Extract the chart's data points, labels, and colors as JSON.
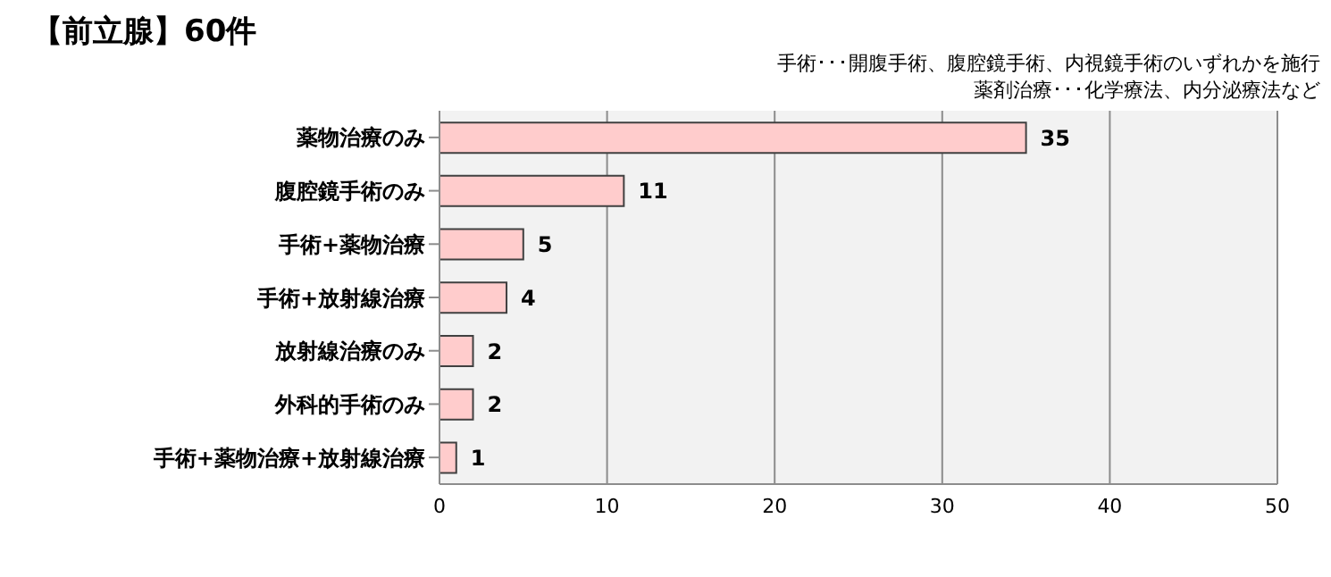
{
  "chart_data": {
    "type": "bar",
    "orientation": "horizontal",
    "title": "【前立腺】60件",
    "annotations": [
      "手術･･･開腹手術、腹腔鏡手術、内視鏡手術のいずれかを施行",
      "薬剤治療･･･化学療法、内分泌療法など"
    ],
    "categories": [
      "薬物治療のみ",
      "腹腔鏡手術のみ",
      "手術+薬物治療",
      "手術+放射線治療",
      "放射線治療のみ",
      "外科的手術のみ",
      "手術+薬物治療+放射線治療"
    ],
    "values": [
      35,
      11,
      5,
      4,
      2,
      2,
      1
    ],
    "color": "#ffcccc",
    "xlim": [
      0,
      50
    ],
    "xticks": [
      0,
      10,
      20,
      30,
      40,
      50
    ],
    "grid": "x",
    "data_labels": true
  }
}
